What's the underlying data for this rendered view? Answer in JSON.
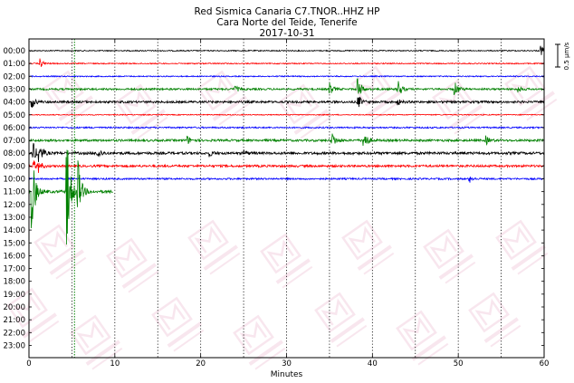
{
  "chart_data": {
    "type": "line",
    "title_lines": [
      "Red Sismica Canaria C7.TNOR..HHZ HP",
      "Cara Norte del Teide, Tenerife",
      "2017-10-31"
    ],
    "xlabel": "Minutes",
    "xlim": [
      0,
      60
    ],
    "x_ticks": [
      0,
      10,
      20,
      30,
      40,
      50,
      60
    ],
    "dotted_gridlines_x": [
      5,
      10,
      15,
      20,
      25,
      30,
      35,
      40,
      45,
      50,
      55
    ],
    "rows": [
      "00:00",
      "01:00",
      "02:00",
      "03:00",
      "04:00",
      "05:00",
      "06:00",
      "07:00",
      "08:00",
      "09:00",
      "10:00",
      "11:00",
      "12:00",
      "13:00",
      "14:00",
      "15:00",
      "16:00",
      "17:00",
      "18:00",
      "19:00",
      "20:00",
      "21:00",
      "22:00",
      "23:00"
    ],
    "row_colors": [
      "#000000",
      "#ff0000",
      "#0000ff",
      "#008000"
    ],
    "scale_label": "0.5 μm/s",
    "marker": {
      "minute": 5.3,
      "color": "#008000",
      "style": "dotted"
    },
    "traces": [
      {
        "hour": "00:00",
        "start": 0,
        "end": 60,
        "noise": 0.6,
        "events": [
          {
            "t": 59.6,
            "amp": 6
          }
        ]
      },
      {
        "hour": "01:00",
        "start": 0,
        "end": 60,
        "noise": 0.6,
        "events": [
          {
            "t": 1.3,
            "amp": 5
          }
        ]
      },
      {
        "hour": "02:00",
        "start": 0,
        "end": 60,
        "noise": 0.6,
        "events": []
      },
      {
        "hour": "03:00",
        "start": 0,
        "end": 60,
        "noise": 1.0,
        "events": [
          {
            "t": 24,
            "amp": 4
          },
          {
            "t": 35,
            "amp": 7
          },
          {
            "t": 38.3,
            "amp": 14
          },
          {
            "t": 43,
            "amp": 10
          },
          {
            "t": 49.6,
            "amp": 8
          },
          {
            "t": 57,
            "amp": 3
          }
        ]
      },
      {
        "hour": "04:00",
        "start": 0,
        "end": 60,
        "noise": 1.2,
        "events": [
          {
            "t": 0.3,
            "amp": 7
          },
          {
            "t": 38.3,
            "amp": 8
          },
          {
            "t": 43,
            "amp": 3
          }
        ]
      },
      {
        "hour": "05:00",
        "start": 0,
        "end": 60,
        "noise": 0.5,
        "events": []
      },
      {
        "hour": "06:00",
        "start": 0,
        "end": 60,
        "noise": 0.8,
        "events": []
      },
      {
        "hour": "07:00",
        "start": 0,
        "end": 60,
        "noise": 1.2,
        "events": [
          {
            "t": 18.5,
            "amp": 4
          },
          {
            "t": 35.3,
            "amp": 9
          },
          {
            "t": 39,
            "amp": 12
          },
          {
            "t": 53.2,
            "amp": 5
          }
        ]
      },
      {
        "hour": "08:00",
        "start": 0,
        "end": 60,
        "noise": 1.4,
        "events": [
          {
            "t": 0.4,
            "amp": 14
          },
          {
            "t": 1.2,
            "amp": 10
          },
          {
            "t": 8,
            "amp": 6
          },
          {
            "t": 21,
            "amp": 3
          },
          {
            "t": 25,
            "amp": 3
          }
        ]
      },
      {
        "hour": "09:00",
        "start": 0,
        "end": 60,
        "noise": 1.2,
        "events": [
          {
            "t": 0.5,
            "amp": 6
          },
          {
            "t": 1.1,
            "amp": 6
          }
        ]
      },
      {
        "hour": "10:00",
        "start": 0,
        "end": 60,
        "noise": 0.9,
        "events": [
          {
            "t": 51.3,
            "amp": 4
          }
        ]
      },
      {
        "hour": "11:00",
        "start": 0,
        "end": 9.8,
        "noise": 1.5,
        "events": [
          {
            "t": 0.3,
            "amp": 50
          },
          {
            "t": 4.4,
            "amp": 68
          },
          {
            "t": 5.6,
            "amp": 44
          }
        ]
      }
    ]
  }
}
